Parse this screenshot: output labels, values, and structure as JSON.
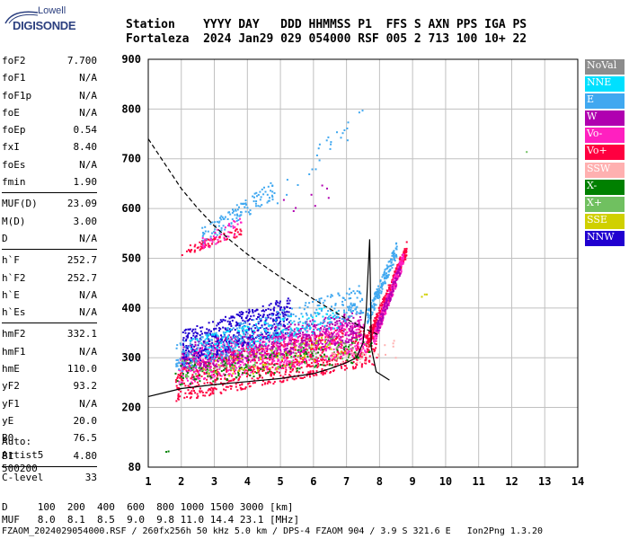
{
  "logo": {
    "line1": "Lowell",
    "line2": "DIGISONDE"
  },
  "header": {
    "line1": "Station    YYYY DAY   DDD HHMMSS P1  FFS S AXN PPS IGA PS",
    "line2": "Fortaleza  2024 Jan29 029 054000 RSF 005 2 713 100 10+ 22"
  },
  "params": [
    [
      {
        "k": "foF2",
        "v": "7.700"
      },
      {
        "k": "foF1",
        "v": "N/A"
      },
      {
        "k": "foF1p",
        "v": "N/A"
      },
      {
        "k": "foE",
        "v": "N/A"
      },
      {
        "k": "foEp",
        "v": "0.54"
      },
      {
        "k": "fxI",
        "v": "8.40"
      },
      {
        "k": "foEs",
        "v": "N/A"
      },
      {
        "k": "fmin",
        "v": "1.90"
      }
    ],
    [
      {
        "k": "MUF(D)",
        "v": "23.09"
      },
      {
        "k": "M(D)",
        "v": "3.00"
      },
      {
        "k": "D",
        "v": "N/A"
      }
    ],
    [
      {
        "k": "h`F",
        "v": "252.7"
      },
      {
        "k": "h`F2",
        "v": "252.7"
      },
      {
        "k": "h`E",
        "v": "N/A"
      },
      {
        "k": "h`Es",
        "v": "N/A"
      }
    ],
    [
      {
        "k": "hmF2",
        "v": "332.1"
      },
      {
        "k": "hmF1",
        "v": "N/A"
      },
      {
        "k": "hmE",
        "v": "110.0"
      },
      {
        "k": "yF2",
        "v": "93.2"
      },
      {
        "k": "yF1",
        "v": "N/A"
      },
      {
        "k": "yE",
        "v": "20.0"
      },
      {
        "k": "B0",
        "v": "76.5"
      },
      {
        "k": "B1",
        "v": "4.80"
      }
    ],
    [
      {
        "k": "C-level",
        "v": "33"
      }
    ]
  ],
  "auto": {
    "line1": "Auto:",
    "line2": "Artist5",
    "line3": "500200"
  },
  "legend": [
    {
      "label": "NoVal",
      "color": "#8c8c8c"
    },
    {
      "label": "NNE",
      "color": "#00e0ff"
    },
    {
      "label": "E",
      "color": "#40a8f0"
    },
    {
      "label": "W",
      "color": "#b000b0"
    },
    {
      "label": "Vo-",
      "color": "#ff20c0"
    },
    {
      "label": "Vo+",
      "color": "#ff0040"
    },
    {
      "label": "SSW",
      "color": "#ffb0b0"
    },
    {
      "label": "X-",
      "color": "#008000"
    },
    {
      "label": "X+",
      "color": "#70c060"
    },
    {
      "label": "SSE",
      "color": "#d0d000"
    },
    {
      "label": "NNW",
      "color": "#2000d0"
    }
  ],
  "footer": {
    "line1": "D     100  200  400  600  800 1000 1500 3000 [km]",
    "line2": "MUF   8.0  8.1  8.5  9.0  9.8 11.0 14.4 23.1 [MHz]",
    "line3": "FZAOM_2024029054000.RSF / 260fx256h 50 kHz 5.0 km / DPS-4 FZAOM 904 / 3.9 S 321.6 E   Ion2Png 1.3.20"
  },
  "chart_data": {
    "type": "scatter",
    "x_ticks": [
      1,
      2,
      3,
      4,
      5,
      6,
      7,
      8,
      9,
      10,
      11,
      12,
      13,
      14
    ],
    "y_ticks": [
      80,
      200,
      300,
      400,
      500,
      600,
      700,
      800,
      900
    ],
    "xlim": [
      1,
      14
    ],
    "ylim": [
      80,
      900
    ],
    "grid": true,
    "curves": {
      "dashed": [
        [
          1.0,
          740
        ],
        [
          1.5,
          690
        ],
        [
          2.0,
          640
        ],
        [
          2.5,
          600
        ],
        [
          3.0,
          565
        ],
        [
          3.5,
          535
        ],
        [
          4.0,
          508
        ],
        [
          4.5,
          485
        ],
        [
          5.0,
          462
        ],
        [
          5.5,
          440
        ],
        [
          6.0,
          418
        ],
        [
          6.5,
          398
        ],
        [
          7.0,
          378
        ],
        [
          7.5,
          360
        ],
        [
          8.0,
          345
        ]
      ],
      "solid": [
        [
          1.0,
          222
        ],
        [
          1.5,
          230
        ],
        [
          2.0,
          238
        ],
        [
          3.0,
          246
        ],
        [
          4.0,
          252
        ],
        [
          5.0,
          258
        ],
        [
          6.0,
          268
        ],
        [
          6.5,
          278
        ],
        [
          7.0,
          290
        ],
        [
          7.3,
          300
        ],
        [
          7.5,
          330
        ],
        [
          7.6,
          400
        ],
        [
          7.7,
          538
        ],
        [
          7.75,
          320
        ],
        [
          7.9,
          272
        ],
        [
          8.3,
          255
        ]
      ]
    },
    "traces": [
      {
        "color": "#ff0040",
        "x": [
          1.8,
          7.9
        ],
        "y": [
          255,
          330
        ],
        "w": 0.7,
        "n": 900
      },
      {
        "color": "#ff20c0",
        "x": [
          1.9,
          7.6
        ],
        "y": [
          280,
          345
        ],
        "w": 0.6,
        "n": 700
      },
      {
        "color": "#b000b0",
        "x": [
          2.0,
          7.4
        ],
        "y": [
          300,
          365
        ],
        "w": 0.5,
        "n": 600
      },
      {
        "color": "#2000d0",
        "x": [
          2.0,
          5.3
        ],
        "y": [
          320,
          390
        ],
        "w": 0.6,
        "n": 450
      },
      {
        "color": "#40a8f0",
        "x": [
          1.8,
          7.5
        ],
        "y": [
          300,
          420
        ],
        "w": 0.5,
        "n": 380
      },
      {
        "color": "#00e0ff",
        "x": [
          2.2,
          7.0
        ],
        "y": [
          315,
          390
        ],
        "w": 0.4,
        "n": 140
      },
      {
        "color": "#008000",
        "x": [
          1.8,
          7.8
        ],
        "y": [
          265,
          320
        ],
        "w": 0.4,
        "n": 150
      },
      {
        "color": "#70c060",
        "x": [
          2.0,
          7.6
        ],
        "y": [
          280,
          330
        ],
        "w": 0.4,
        "n": 110
      },
      {
        "color": "#d0d000",
        "x": [
          2.5,
          7.0
        ],
        "y": [
          270,
          330
        ],
        "w": 0.4,
        "n": 60
      },
      {
        "color": "#ffb0b0",
        "x": [
          6.5,
          8.6
        ],
        "y": [
          300,
          320
        ],
        "w": 0.3,
        "n": 30
      },
      {
        "color": "#ff0040",
        "x": [
          7.6,
          8.8
        ],
        "y": [
          330,
          520
        ],
        "w": 0.25,
        "n": 280
      },
      {
        "color": "#ff20c0",
        "x": [
          7.8,
          8.7
        ],
        "y": [
          340,
          500
        ],
        "w": 0.25,
        "n": 220
      },
      {
        "color": "#40a8f0",
        "x": [
          7.6,
          8.5
        ],
        "y": [
          380,
          520
        ],
        "w": 0.25,
        "n": 160
      },
      {
        "color": "#b000b0",
        "x": [
          7.9,
          8.6
        ],
        "y": [
          360,
          480
        ],
        "w": 0.2,
        "n": 100
      },
      {
        "color": "#ff0040",
        "x": [
          2.0,
          3.8
        ],
        "y": [
          515,
          555
        ],
        "w": 0.15,
        "n": 70
      },
      {
        "color": "#40a8f0",
        "x": [
          2.6,
          4.8
        ],
        "y": [
          545,
          640
        ],
        "w": 0.3,
        "n": 120
      },
      {
        "color": "#ff20c0",
        "x": [
          2.6,
          3.8
        ],
        "y": [
          530,
          570
        ],
        "w": 0.25,
        "n": 40
      },
      {
        "color": "#40a8f0",
        "x": [
          4.8,
          7.6
        ],
        "y": [
          620,
          800
        ],
        "w": 0.4,
        "n": 25
      },
      {
        "color": "#b000b0",
        "x": [
          4.5,
          6.5
        ],
        "y": [
          590,
          640
        ],
        "w": 0.4,
        "n": 8
      },
      {
        "color": "#d0d000",
        "x": [
          9.2,
          9.6
        ],
        "y": [
          425,
          430
        ],
        "w": 0.05,
        "n": 3
      },
      {
        "color": "#70c060",
        "x": [
          12.4,
          12.5
        ],
        "y": [
          715,
          716
        ],
        "w": 0.01,
        "n": 1
      },
      {
        "color": "#008000",
        "x": [
          1.5,
          1.6
        ],
        "y": [
          112,
          113
        ],
        "w": 0.01,
        "n": 2
      }
    ]
  }
}
